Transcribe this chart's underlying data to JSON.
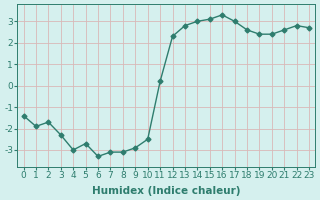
{
  "x": [
    0,
    1,
    2,
    3,
    4,
    5,
    6,
    7,
    8,
    9,
    10,
    11,
    12,
    13,
    14,
    15,
    16,
    17,
    18,
    19,
    20,
    21,
    22,
    23
  ],
  "y": [
    -1.4,
    -1.9,
    -1.7,
    -2.3,
    -3.0,
    -2.7,
    -3.3,
    -3.1,
    -3.1,
    -2.9,
    -2.5,
    0.2,
    2.3,
    2.8,
    3.0,
    3.1,
    3.3,
    3.0,
    2.6,
    2.4,
    2.4,
    2.6,
    2.8,
    2.7
  ],
  "line_color": "#2e7d6e",
  "marker": "D",
  "marker_size": 2.5,
  "bg_color": "#d5f0ee",
  "grid_color": "#c8e8e5",
  "grid_major_color": "#c0d8d5",
  "xlabel": "Humidex (Indice chaleur)",
  "ylim": [
    -3.8,
    3.8
  ],
  "xlim": [
    -0.5,
    23.5
  ],
  "yticks": [
    -3,
    -2,
    -1,
    0,
    1,
    2,
    3
  ],
  "xticks": [
    0,
    1,
    2,
    3,
    4,
    5,
    6,
    7,
    8,
    9,
    10,
    11,
    12,
    13,
    14,
    15,
    16,
    17,
    18,
    19,
    20,
    21,
    22,
    23
  ],
  "xlabel_fontsize": 7.5,
  "tick_fontsize": 6.5,
  "line_width": 1.0
}
